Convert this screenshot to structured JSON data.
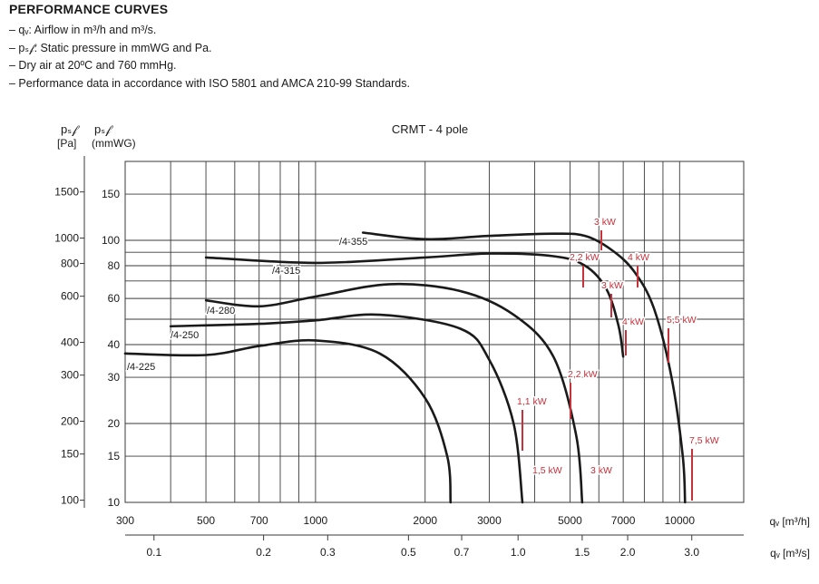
{
  "header": {
    "heading": "PERFORMANCE CURVES",
    "notes": [
      "– qᵥ: Airflow in m³/h and m³/s.",
      "– pₛ𝒻: Static pressure in mmWG and Pa.",
      "– Dry air at 20ºC and 760 mmHg.",
      "– Performance data in accordance with ISO 5801 and AMCA 210-99 Standards."
    ]
  },
  "chart_data": {
    "type": "line",
    "title": "CRMT - 4 pole",
    "x_scale": "log",
    "y_scale": "log",
    "x_axis_m3h": {
      "label": "qᵥ [m³/h]",
      "range": [
        300,
        15000
      ],
      "ticks": [
        300,
        500,
        700,
        1000,
        2000,
        3000,
        5000,
        7000,
        10000
      ],
      "tick_labels": [
        "300",
        "500",
        "700",
        "1000",
        "2000",
        "3000",
        "5000",
        "7000",
        "10000"
      ]
    },
    "x_axis_m3s": {
      "label": "qᵥ [m³/s]",
      "ticks": [
        0.1,
        0.2,
        0.3,
        0.5,
        0.7,
        1.0,
        1.5,
        2.0,
        3.0
      ],
      "tick_labels": [
        "0.1",
        "0.2",
        "0.3",
        "0.5",
        "0.7",
        "1.0",
        "1.5",
        "2.0",
        "3.0"
      ]
    },
    "y_axis_mmwg": {
      "label": "(mmWG)",
      "symbol": "pₛ𝒻",
      "range": [
        10,
        200
      ],
      "ticks": [
        10,
        15,
        20,
        30,
        40,
        60,
        80,
        100,
        150
      ],
      "tick_labels": [
        "10",
        "15",
        "20",
        "30",
        "40",
        "60",
        "80",
        "100",
        "150"
      ]
    },
    "y_axis_pa": {
      "label": "[Pa]",
      "symbol": "pₛ𝒻",
      "ticks": [
        100,
        150,
        200,
        300,
        400,
        600,
        800,
        1000,
        1500
      ],
      "tick_labels": [
        "100",
        "150",
        "200",
        "300",
        "400",
        "600",
        "800",
        "1000",
        "1500"
      ]
    },
    "grid": true,
    "series": [
      {
        "name": "/4-225",
        "x": [
          300,
          500,
          700,
          1000,
          1500,
          2000,
          2300,
          2350
        ],
        "y": [
          37,
          36.5,
          39.5,
          41.5,
          37,
          25,
          15,
          10
        ]
      },
      {
        "name": "/4-250",
        "x": [
          400,
          700,
          1000,
          1500,
          2500,
          3000,
          3500,
          3700
        ],
        "y": [
          47,
          48,
          49.5,
          52,
          46,
          35,
          20,
          10
        ]
      },
      {
        "name": "/4-280",
        "x": [
          500,
          700,
          1000,
          1600,
          2500,
          3500,
          4500,
          5200,
          5400
        ],
        "y": [
          59,
          56,
          61,
          68,
          64,
          52,
          36,
          18,
          10
        ]
      },
      {
        "name": "/4-315",
        "x": [
          500,
          1000,
          2000,
          3000,
          4500,
          5500,
          6300,
          6800,
          7000
        ],
        "y": [
          86,
          82,
          86,
          89,
          87,
          80,
          65,
          47,
          36
        ]
      },
      {
        "name": "/4-355",
        "x": [
          1350,
          2000,
          3000,
          4500,
          5500,
          6500,
          7500,
          8500,
          9500,
          10200,
          10350
        ],
        "y": [
          107,
          101,
          104,
          106,
          104,
          92,
          76,
          55,
          30,
          15,
          10
        ]
      }
    ],
    "annotations": [
      "3 kW",
      "2,2 kW",
      "4 kW",
      "3 kW",
      "4 kW",
      "5,5 kW",
      "2,2 kW",
      "1,1 kW",
      "1,5 kW",
      "3 kW",
      "7,5 kW"
    ],
    "annotation_color": "#c8303a",
    "curve_color": "#1a1a1a",
    "grid_color": "#3a3a3a"
  }
}
